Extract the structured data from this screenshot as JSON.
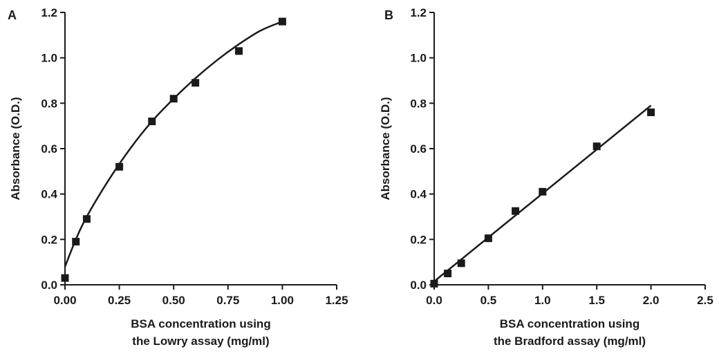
{
  "chart_data": [
    {
      "panel": "A",
      "type": "scatter",
      "xlabel_lines": [
        "BSA concentration using",
        "the Lowry assay (mg/ml)"
      ],
      "ylabel": "Absorbance (O.D.)",
      "xlim": [
        0,
        1.25
      ],
      "ylim": [
        0,
        1.2
      ],
      "xticks": [
        "0.00",
        "0.25",
        "0.50",
        "0.75",
        "1.00",
        "1.25"
      ],
      "yticks": [
        "0.0",
        "0.2",
        "0.4",
        "0.6",
        "0.8",
        "1.0",
        "1.2"
      ],
      "grid": false,
      "points": {
        "x": [
          0,
          0.05,
          0.1,
          0.25,
          0.4,
          0.5,
          0.6,
          0.8,
          1.0
        ],
        "y": [
          0.03,
          0.19,
          0.29,
          0.52,
          0.72,
          0.82,
          0.89,
          1.03,
          1.16
        ]
      },
      "fit": {
        "type": "nonlinear curve",
        "x": [
          0,
          0.05,
          0.1,
          0.2,
          0.3,
          0.4,
          0.5,
          0.6,
          0.7,
          0.8,
          0.9,
          1.0
        ],
        "y": [
          0.08,
          0.2,
          0.3,
          0.46,
          0.6,
          0.72,
          0.82,
          0.91,
          0.99,
          1.06,
          1.12,
          1.16
        ]
      },
      "color": "#1a1a1a"
    },
    {
      "panel": "B",
      "type": "scatter",
      "xlabel_lines": [
        "BSA concentration using",
        "the Bradford assay (mg/ml)"
      ],
      "ylabel": "Absorbance (O.D.)",
      "xlim": [
        0,
        2.5
      ],
      "ylim": [
        0,
        1.2
      ],
      "xticks": [
        "0.0",
        "0.5",
        "1.0",
        "1.5",
        "2.0",
        "2.5"
      ],
      "yticks": [
        "0.0",
        "0.2",
        "0.4",
        "0.6",
        "0.8",
        "1.0",
        "1.2"
      ],
      "grid": false,
      "points": {
        "x": [
          0,
          0.125,
          0.25,
          0.5,
          0.75,
          1.0,
          1.5,
          2.0
        ],
        "y": [
          0.005,
          0.05,
          0.095,
          0.205,
          0.325,
          0.41,
          0.61,
          0.76
        ]
      },
      "fit": {
        "type": "linear",
        "x": [
          0,
          2.0
        ],
        "y": [
          0.015,
          0.79
        ]
      },
      "color": "#1a1a1a"
    }
  ]
}
